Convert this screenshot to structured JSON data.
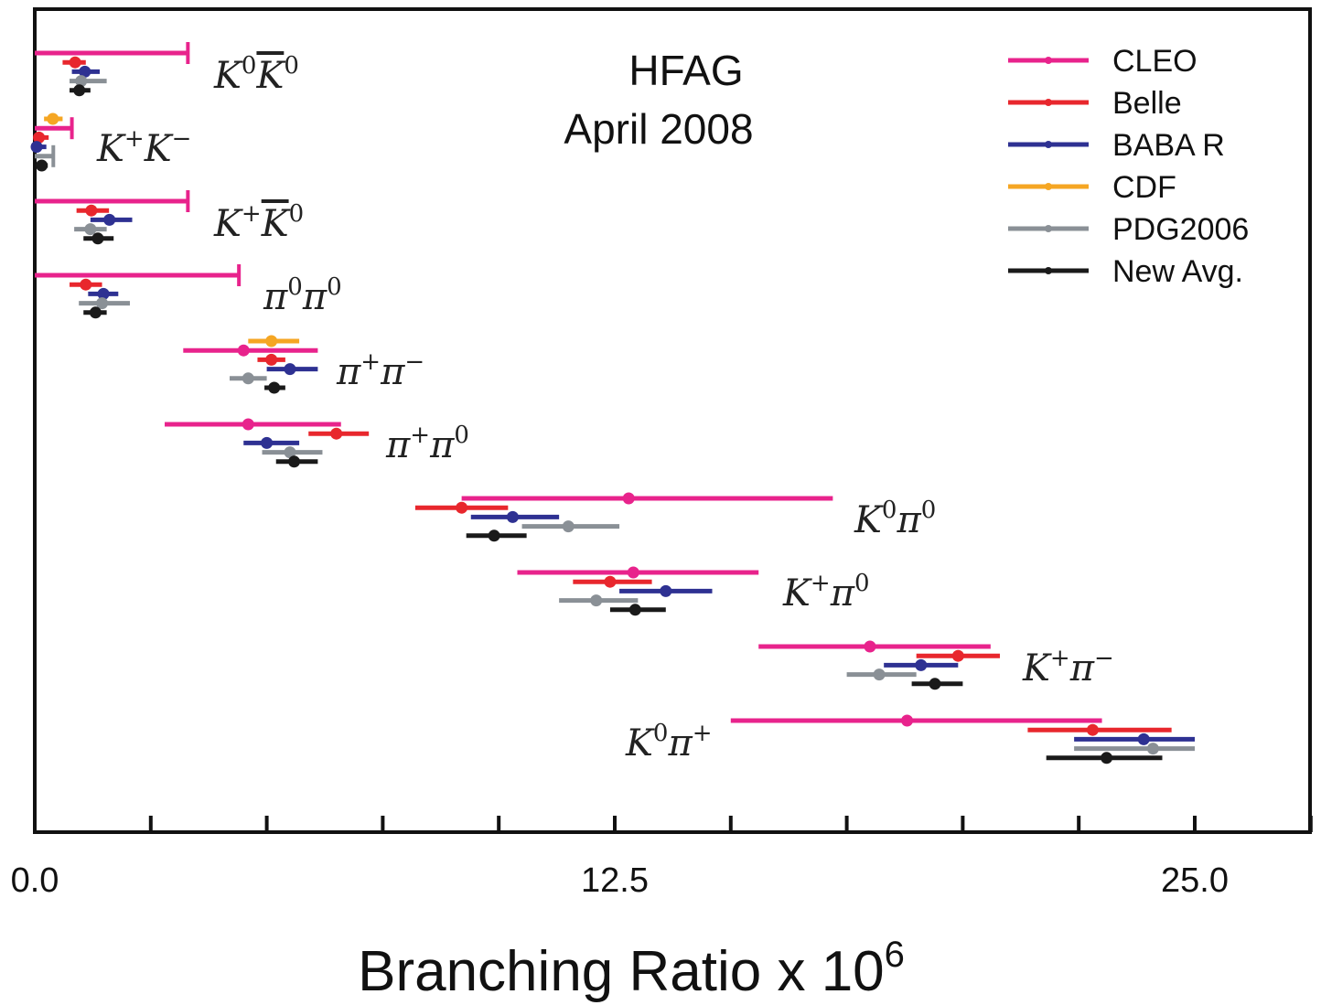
{
  "chart_data": {
    "type": "error-bar",
    "annotations": [
      "HFAG",
      "April 2008"
    ],
    "xlabel": "Branching Ratio x 10",
    "xlabel_sup": "6",
    "xlim": [
      0,
      27.5
    ],
    "xticks_major": [
      0,
      12.5,
      25.0
    ],
    "xtick_labels": [
      "0.0",
      "12.5",
      "25.0"
    ],
    "xticks_minor": [
      2.5,
      5,
      7.5,
      10,
      15,
      17.5,
      20,
      22.5,
      27.5
    ],
    "legend_position": "top-right",
    "series": [
      {
        "name": "CLEO",
        "color": "#e8238c"
      },
      {
        "name": "Belle",
        "color": "#e8272d"
      },
      {
        "name": "BABA R",
        "color": "#2e3192"
      },
      {
        "name": "CDF",
        "color": "#f5a623"
      },
      {
        "name": "PDG2006",
        "color": "#8a9096"
      },
      {
        "name": "New Avg.",
        "color": "#1a1a1a"
      }
    ],
    "modes": [
      {
        "label": "K0K0bar",
        "base": "K",
        "sup": "0",
        "bar_over": "K",
        "bar_sup": "0",
        "measurements": [
          {
            "series": "CLEO",
            "value": 0,
            "lo": 0,
            "hi": 3.3,
            "limit": true
          },
          {
            "series": "Belle",
            "value": 0.87,
            "lo": 0.6,
            "hi": 1.1
          },
          {
            "series": "BABA R",
            "value": 1.08,
            "lo": 0.8,
            "hi": 1.4
          },
          {
            "series": "PDG2006",
            "value": 1.0,
            "lo": 0.75,
            "hi": 1.55
          },
          {
            "series": "New Avg.",
            "value": 0.96,
            "lo": 0.75,
            "hi": 1.2
          }
        ]
      },
      {
        "label": "K+K-",
        "base": "K",
        "sup": "+",
        "second": "K",
        "second_sup": "−",
        "measurements": [
          {
            "series": "CDF",
            "value": 0.39,
            "lo": 0.2,
            "hi": 0.6
          },
          {
            "series": "CLEO",
            "value": 0,
            "lo": 0,
            "hi": 0.8,
            "limit": true
          },
          {
            "series": "Belle",
            "value": 0.09,
            "lo": 0,
            "hi": 0.3
          },
          {
            "series": "BABA R",
            "value": 0.04,
            "lo": 0,
            "hi": 0.25
          },
          {
            "series": "PDG2006",
            "value": 0.15,
            "lo": 0,
            "hi": 0.4,
            "limit": true
          },
          {
            "series": "New Avg.",
            "value": 0.15,
            "lo": 0.05,
            "hi": 0.28
          }
        ]
      },
      {
        "label": "K+K0bar",
        "base": "K",
        "sup": "+",
        "bar_over": "K",
        "bar_sup": "0",
        "measurements": [
          {
            "series": "CLEO",
            "value": 0,
            "lo": 0,
            "hi": 3.3,
            "limit": true
          },
          {
            "series": "Belle",
            "value": 1.22,
            "lo": 0.9,
            "hi": 1.6
          },
          {
            "series": "BABA R",
            "value": 1.61,
            "lo": 1.2,
            "hi": 2.1
          },
          {
            "series": "PDG2006",
            "value": 1.2,
            "lo": 0.85,
            "hi": 1.55
          },
          {
            "series": "New Avg.",
            "value": 1.36,
            "lo": 1.05,
            "hi": 1.7
          }
        ]
      },
      {
        "label": "pi0pi0",
        "base": "π",
        "sup": "0",
        "second": "π",
        "second_sup": "0",
        "measurements": [
          {
            "series": "CLEO",
            "value": 0,
            "lo": 0,
            "hi": 4.4,
            "limit": true
          },
          {
            "series": "Belle",
            "value": 1.1,
            "lo": 0.75,
            "hi": 1.45
          },
          {
            "series": "BABA R",
            "value": 1.48,
            "lo": 1.15,
            "hi": 1.8
          },
          {
            "series": "PDG2006",
            "value": 1.45,
            "lo": 0.95,
            "hi": 2.05
          },
          {
            "series": "New Avg.",
            "value": 1.31,
            "lo": 1.05,
            "hi": 1.55
          }
        ]
      },
      {
        "label": "pi+pi-",
        "base": "π",
        "sup": "+",
        "second": "π",
        "second_sup": "−",
        "measurements": [
          {
            "series": "CDF",
            "value": 5.1,
            "lo": 4.6,
            "hi": 5.7
          },
          {
            "series": "CLEO",
            "value": 4.5,
            "lo": 3.2,
            "hi": 6.1
          },
          {
            "series": "Belle",
            "value": 5.1,
            "lo": 4.8,
            "hi": 5.4
          },
          {
            "series": "BABA R",
            "value": 5.5,
            "lo": 5.0,
            "hi": 6.1
          },
          {
            "series": "PDG2006",
            "value": 4.6,
            "lo": 4.2,
            "hi": 5.0
          },
          {
            "series": "New Avg.",
            "value": 5.16,
            "lo": 4.95,
            "hi": 5.4
          }
        ]
      },
      {
        "label": "pi+pi0",
        "base": "π",
        "sup": "+",
        "second": "π",
        "second_sup": "0",
        "measurements": [
          {
            "series": "CLEO",
            "value": 4.6,
            "lo": 2.8,
            "hi": 6.6
          },
          {
            "series": "Belle",
            "value": 6.5,
            "lo": 5.9,
            "hi": 7.2
          },
          {
            "series": "BABA R",
            "value": 5.0,
            "lo": 4.5,
            "hi": 5.7
          },
          {
            "series": "PDG2006",
            "value": 5.5,
            "lo": 4.9,
            "hi": 6.2
          },
          {
            "series": "New Avg.",
            "value": 5.59,
            "lo": 5.2,
            "hi": 6.1
          }
        ]
      },
      {
        "label": "K0pi0",
        "base": "K",
        "sup": "0",
        "second": "π",
        "second_sup": "0",
        "measurements": [
          {
            "series": "CLEO",
            "value": 12.8,
            "lo": 9.2,
            "hi": 17.2
          },
          {
            "series": "Belle",
            "value": 9.2,
            "lo": 8.2,
            "hi": 10.2
          },
          {
            "series": "BABA R",
            "value": 10.3,
            "lo": 9.4,
            "hi": 11.3
          },
          {
            "series": "PDG2006",
            "value": 11.5,
            "lo": 10.5,
            "hi": 12.6
          },
          {
            "series": "New Avg.",
            "value": 9.9,
            "lo": 9.3,
            "hi": 10.6
          }
        ]
      },
      {
        "label": "K+pi0",
        "base": "K",
        "sup": "+",
        "second": "π",
        "second_sup": "0",
        "measurements": [
          {
            "series": "CLEO",
            "value": 12.9,
            "lo": 10.4,
            "hi": 15.6
          },
          {
            "series": "Belle",
            "value": 12.4,
            "lo": 11.6,
            "hi": 13.3
          },
          {
            "series": "BABA R",
            "value": 13.6,
            "lo": 12.6,
            "hi": 14.6
          },
          {
            "series": "PDG2006",
            "value": 12.1,
            "lo": 11.3,
            "hi": 13.0
          },
          {
            "series": "New Avg.",
            "value": 12.94,
            "lo": 12.4,
            "hi": 13.6
          }
        ]
      },
      {
        "label": "K+pi-",
        "base": "K",
        "sup": "+",
        "second": "π",
        "second_sup": "−",
        "measurements": [
          {
            "series": "CLEO",
            "value": 18.0,
            "lo": 15.6,
            "hi": 20.6
          },
          {
            "series": "Belle",
            "value": 19.9,
            "lo": 19.0,
            "hi": 20.8
          },
          {
            "series": "BABA R",
            "value": 19.1,
            "lo": 18.3,
            "hi": 19.9
          },
          {
            "series": "PDG2006",
            "value": 18.2,
            "lo": 17.5,
            "hi": 19.0
          },
          {
            "series": "New Avg.",
            "value": 19.4,
            "lo": 18.9,
            "hi": 20.0
          }
        ]
      },
      {
        "label": "K0pi+",
        "base": "K",
        "sup": "0",
        "second": "π",
        "second_sup": "+",
        "measurements": [
          {
            "series": "CLEO",
            "value": 18.8,
            "lo": 15.0,
            "hi": 23.0
          },
          {
            "series": "Belle",
            "value": 22.8,
            "lo": 21.4,
            "hi": 24.5
          },
          {
            "series": "BABA R",
            "value": 23.9,
            "lo": 22.4,
            "hi": 25.0
          },
          {
            "series": "PDG2006",
            "value": 24.1,
            "lo": 22.4,
            "hi": 25.0
          },
          {
            "series": "New Avg.",
            "value": 23.1,
            "lo": 21.8,
            "hi": 24.3
          }
        ]
      }
    ]
  }
}
